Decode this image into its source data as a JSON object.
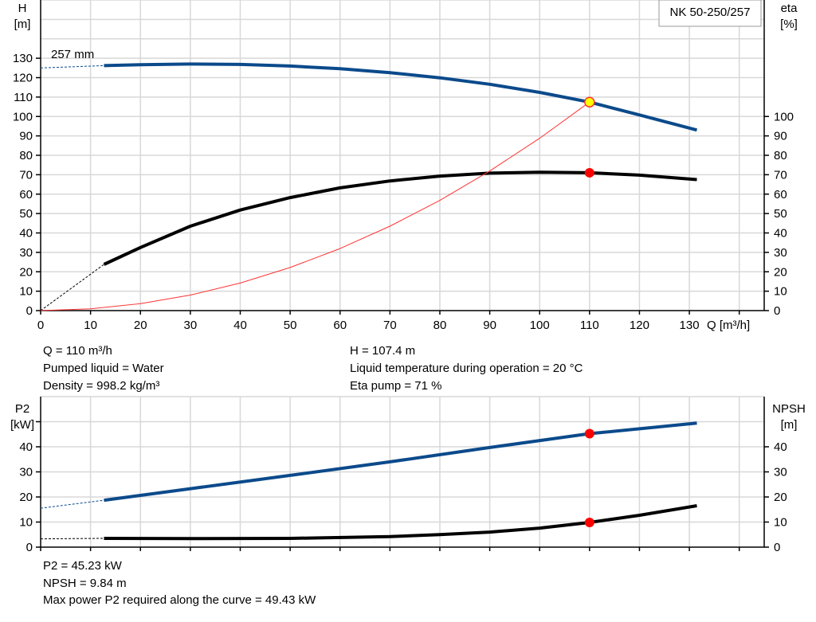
{
  "chart_data": [
    {
      "type": "line",
      "title": "NK 50-250/257",
      "xlabel": "Q [m³/h]",
      "ylabel_left": [
        "H",
        "[m]"
      ],
      "ylabel_right": [
        "eta",
        "[%]"
      ],
      "xlim": [
        0,
        145
      ],
      "ylim": [
        0,
        160
      ],
      "xticks": [
        0,
        10,
        20,
        30,
        40,
        50,
        60,
        70,
        80,
        90,
        100,
        110,
        120,
        130
      ],
      "yticks_left": [
        0,
        10,
        20,
        30,
        40,
        50,
        60,
        70,
        80,
        90,
        100,
        110,
        120,
        130
      ],
      "yticks_right": [
        0,
        10,
        20,
        30,
        40,
        50,
        60,
        70,
        80,
        90,
        100
      ],
      "grid": true,
      "annotation": "257 mm",
      "series": [
        {
          "key": "H",
          "color": "#0b4a8b",
          "x": [
            12.7,
            20,
            30,
            40,
            50,
            60,
            70,
            80,
            90,
            100,
            110,
            120,
            131.5
          ],
          "y": [
            126.2,
            126.7,
            127,
            126.8,
            126,
            124.6,
            122.6,
            119.9,
            116.6,
            112.4,
            107.4,
            100.8,
            93
          ],
          "dashed_from": [
            0,
            125
          ]
        },
        {
          "key": "eta",
          "color": "#000000",
          "x": [
            12.7,
            20,
            30,
            40,
            50,
            60,
            70,
            80,
            90,
            100,
            110,
            120,
            131.5
          ],
          "y": [
            23.8,
            32.5,
            43.5,
            51.8,
            58.2,
            63.2,
            66.8,
            69.3,
            70.8,
            71.3,
            71,
            69.8,
            67.5
          ],
          "dashed_from": [
            0,
            0
          ]
        },
        {
          "key": "system",
          "color": "#ff3333",
          "x": [
            0,
            10,
            20,
            30,
            40,
            50,
            60,
            70,
            80,
            90,
            100,
            110
          ],
          "y": [
            0,
            0.89,
            3.55,
            7.99,
            14.2,
            22.2,
            31.96,
            43.5,
            56.8,
            71.9,
            88.8,
            107.4
          ]
        }
      ],
      "operating_points": [
        {
          "x": 110,
          "y": 107.4,
          "fill": "#ffff00"
        },
        {
          "x": 110,
          "y": 71,
          "fill": "#ff0000"
        }
      ]
    },
    {
      "type": "line",
      "ylabel_left": [
        "P2",
        "[kW]"
      ],
      "ylabel_right": [
        "NPSH",
        "[m]"
      ],
      "xlim": [
        0,
        145
      ],
      "ylim": [
        0,
        60
      ],
      "yticks": [
        0,
        10,
        20,
        30,
        40
      ],
      "grid": true,
      "series": [
        {
          "key": "P2",
          "color": "#0b4a8b",
          "x": [
            12.7,
            30,
            50,
            70,
            90,
            110,
            131.5
          ],
          "y": [
            18.7,
            23.3,
            28.6,
            34,
            39.7,
            45.23,
            49.43
          ],
          "dashed_from": [
            0,
            15.5
          ]
        },
        {
          "key": "NPSH",
          "color": "#000000",
          "x": [
            12.7,
            30,
            50,
            70,
            80,
            90,
            100,
            110,
            120,
            131.5
          ],
          "y": [
            3.5,
            3.4,
            3.5,
            4.2,
            5,
            6,
            7.6,
            9.84,
            12.7,
            16.5
          ],
          "dashed_from": [
            0,
            3.3
          ]
        }
      ],
      "operating_points": [
        {
          "x": 110,
          "y": 45.23,
          "fill": "#ff0000"
        },
        {
          "x": 110,
          "y": 9.84,
          "fill": "#ff0000"
        }
      ]
    }
  ],
  "info_top": {
    "q": "Q = 110 m³/h",
    "liquid": "Pumped liquid = Water",
    "density": "Density = 998.2 kg/m³",
    "h": "H = 107.4 m",
    "temp": "Liquid temperature during operation = 20 °C",
    "eta": "Eta pump = 71 %"
  },
  "info_bottom": {
    "p2": "P2 = 45.23 kW",
    "npsh": "NPSH = 9.84 m",
    "max": "Max power P2 required along the curve = 49.43 kW"
  }
}
